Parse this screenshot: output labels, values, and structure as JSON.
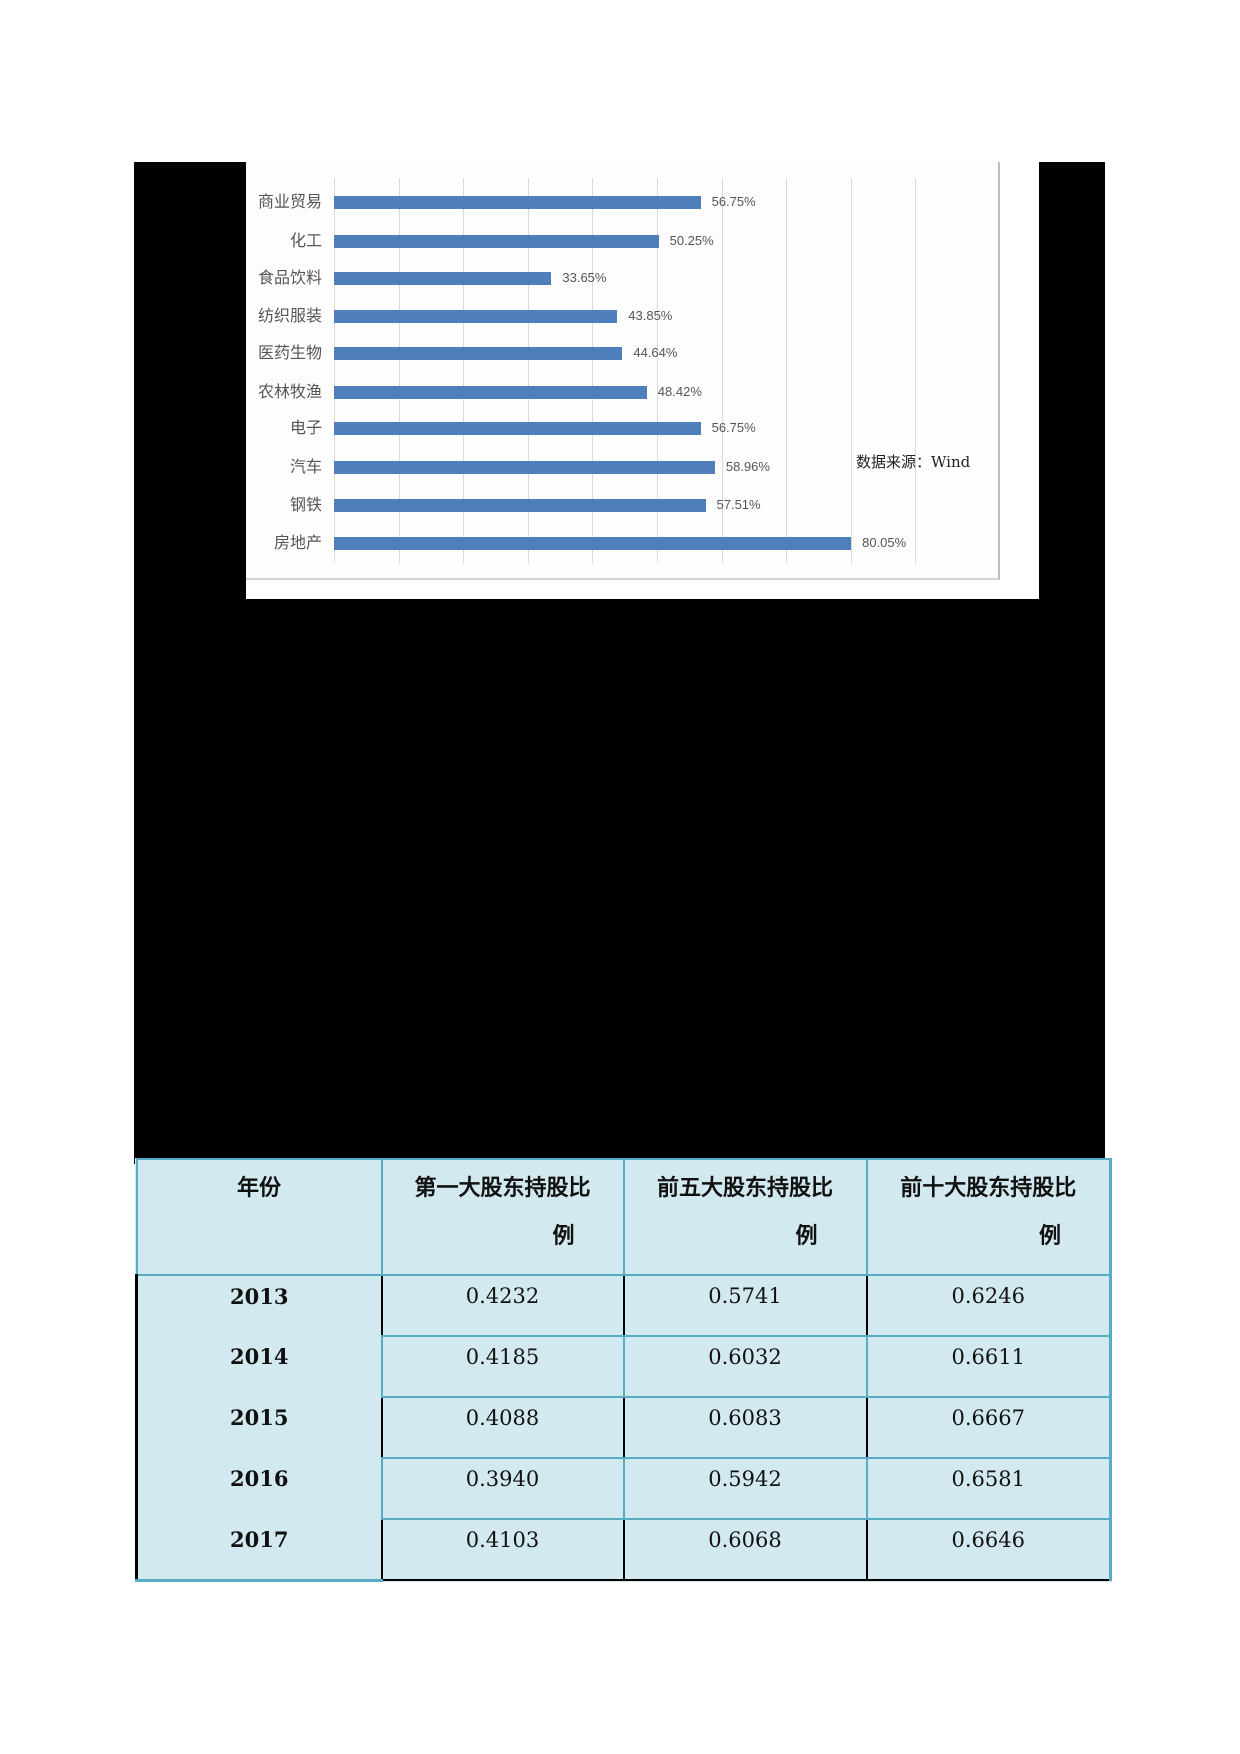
{
  "chart": {
    "source_label": "数据来源：Wind",
    "caption_visible": "(caption obscured)"
  },
  "chart_data": {
    "type": "bar",
    "orientation": "horizontal",
    "title": "",
    "categories": [
      "商业贸易",
      "化工",
      "食品饮料",
      "纺织服装",
      "医药生物",
      "农林牧渔",
      "电子",
      "汽车",
      "钢铁",
      "房地产"
    ],
    "values": [
      56.75,
      50.25,
      33.65,
      43.85,
      44.64,
      48.42,
      56.75,
      58.96,
      57.51,
      80.05
    ],
    "value_labels": [
      "56.75%",
      "50.25%",
      "33.65%",
      "43.85%",
      "44.64%",
      "48.42%",
      "56.75%",
      "58.96%",
      "57.51%",
      "80.05%"
    ],
    "unit": "%",
    "xlabel": "",
    "ylabel": "",
    "xlim": [
      0,
      90
    ],
    "grid": true,
    "bar_color": "#4f7fbb",
    "annotation": "数据来源：Wind"
  },
  "table": {
    "headers": [
      {
        "line1": "年份",
        "line2": ""
      },
      {
        "line1": "第一大股东持股比",
        "line2": "例"
      },
      {
        "line1": "前五大股东持股比",
        "line2": "例"
      },
      {
        "line1": "前十大股东持股比",
        "line2": "例"
      }
    ],
    "rows": [
      {
        "year": "2013",
        "top1": "0.4232",
        "top5": "0.5741",
        "top10": "0.6246"
      },
      {
        "year": "2014",
        "top1": "0.4185",
        "top5": "0.6032",
        "top10": "0.6611"
      },
      {
        "year": "2015",
        "top1": "0.4088",
        "top5": "0.6083",
        "top10": "0.6667"
      },
      {
        "year": "2016",
        "top1": "0.3940",
        "top5": "0.5942",
        "top10": "0.6581"
      },
      {
        "year": "2017",
        "top1": "0.4103",
        "top5": "0.6068",
        "top10": "0.6646"
      }
    ]
  },
  "colors": {
    "table_bg": "#d3e9f0",
    "table_border": "#58adc6",
    "redaction": "#000000"
  }
}
